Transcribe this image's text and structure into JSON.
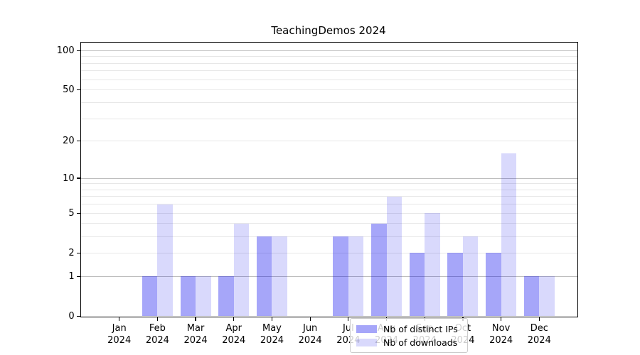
{
  "chart_data": {
    "type": "bar",
    "title": "TeachingDemos 2024",
    "categories": [
      "Jan 2024",
      "Feb 2024",
      "Mar 2024",
      "Apr 2024",
      "May 2024",
      "Jun 2024",
      "Jul 2024",
      "Aug 2024",
      "Sep 2024",
      "Oct 2024",
      "Nov 2024",
      "Dec 2024"
    ],
    "months": [
      "Jan",
      "Feb",
      "Mar",
      "Apr",
      "May",
      "Jun",
      "Jul",
      "Aug",
      "Sep",
      "Oct",
      "Nov",
      "Dec"
    ],
    "years": [
      "2024",
      "2024",
      "2024",
      "2024",
      "2024",
      "2024",
      "2024",
      "2024",
      "2024",
      "2024",
      "2024",
      "2024"
    ],
    "series": [
      {
        "name": "Nb of distinct IPs",
        "key": "distinct-ips",
        "color": "rgba(0,0,238,0.35)",
        "values": [
          0,
          1,
          1,
          1,
          3,
          0,
          3,
          4,
          2,
          2,
          2,
          1
        ]
      },
      {
        "name": "Nb of downloads",
        "key": "downloads",
        "color": "rgba(0,0,238,0.15)",
        "values": [
          0,
          6,
          1,
          4,
          3,
          0,
          3,
          7,
          5,
          3,
          16,
          1
        ]
      }
    ],
    "yscale": "log1p",
    "ylim": [
      0,
      115
    ],
    "yticks": [
      0,
      1,
      2,
      5,
      10,
      20,
      50,
      100
    ],
    "grid": true,
    "grid_major_values": [
      1,
      10,
      100
    ],
    "grid_minor_values": [
      2,
      3,
      4,
      5,
      6,
      7,
      8,
      9,
      20,
      30,
      40,
      50,
      60,
      70,
      80,
      90
    ],
    "legend_position": "inside lower center",
    "xlabel": "",
    "ylabel": ""
  },
  "colors": {
    "background": "#ffffff",
    "axis": "#000000",
    "grid_major": "#bdbdbd",
    "grid_minor": "#e7e7e7",
    "bar_distinct_ips": "rgba(0,0,238,0.35)",
    "bar_downloads": "rgba(0,0,238,0.15)",
    "legend_border": "#cccccc",
    "legend_background": "rgba(255,255,255,0.8)"
  }
}
